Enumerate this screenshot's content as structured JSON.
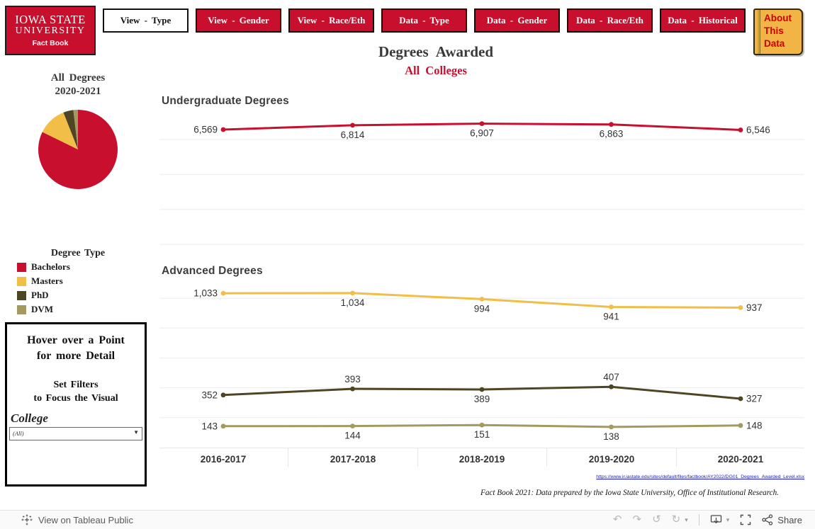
{
  "colors": {
    "cardinal": "#C8102E",
    "bright_red": "#CC0000",
    "gold": "#F1BE48",
    "olive": "#4E4524",
    "khaki": "#A29A5F",
    "link": "#1717D6",
    "book_bg": "#F2B445"
  },
  "header": {
    "logo": {
      "line1": "Iowa State",
      "line2": "University",
      "line3": "Fact Book"
    },
    "nav_buttons": [
      {
        "label": "View - Type",
        "active": true
      },
      {
        "label": "View - Gender",
        "active": false
      },
      {
        "label": "View - Race/Eth",
        "active": false
      },
      {
        "label": "Data - Type",
        "active": false
      },
      {
        "label": "Data - Gender",
        "active": false
      },
      {
        "label": "Data - Race/Eth",
        "active": false
      },
      {
        "label": "Data - Historical",
        "active": false
      }
    ],
    "about_lines": [
      "About",
      "This",
      "Data"
    ],
    "title": "Degrees Awarded",
    "subtitle": "All Colleges"
  },
  "sidebar": {
    "pie_title_line1": "All Degrees",
    "pie_title_line2": "2020-2021",
    "legend_title": "Degree Type",
    "box": {
      "hover1": "Hover over a Point",
      "hover2": "for more Detail",
      "set1": "Set Filters",
      "set2": "to Focus the Visual",
      "college_label": "College",
      "dropdown_value": "(All)"
    }
  },
  "chart_data": [
    {
      "id": "pie",
      "type": "pie",
      "title": "All Degrees 2020-2021",
      "labels": [
        "Bachelors",
        "Masters",
        "PhD",
        "DVM"
      ],
      "values": [
        6546,
        937,
        327,
        148
      ],
      "colors": [
        "#C8102E",
        "#F1BE48",
        "#4E4524",
        "#A29A5F"
      ],
      "legend_title": "Degree Type",
      "start_angle_deg": 0,
      "direction": "clockwise"
    },
    {
      "id": "undergrad",
      "type": "line",
      "title": "Undergraduate Degrees",
      "categories": [
        "2016-2017",
        "2017-2018",
        "2018-2019",
        "2019-2020",
        "2020-2021"
      ],
      "ylim": [
        0,
        7500
      ],
      "gridlines": [
        0,
        2000,
        4000,
        6000
      ],
      "grid": true,
      "series": [
        {
          "name": "Bachelors",
          "color": "#C8102E",
          "values": [
            6569,
            6814,
            6907,
            6863,
            6546
          ],
          "labels": [
            "6,569",
            "6,814",
            "6,907",
            "6,863",
            "6,546"
          ],
          "label_pos": [
            "left",
            "below",
            "below",
            "below",
            "right"
          ]
        }
      ]
    },
    {
      "id": "advanced",
      "type": "line",
      "title": "Advanced Degrees",
      "categories": [
        "2016-2017",
        "2017-2018",
        "2018-2019",
        "2019-2020",
        "2020-2021"
      ],
      "ylim": [
        0,
        1100
      ],
      "gridlines": [
        200,
        400,
        600,
        800,
        1000
      ],
      "grid": true,
      "series": [
        {
          "name": "Masters",
          "color": "#F1BE48",
          "values": [
            1033,
            1034,
            994,
            941,
            937
          ],
          "labels": [
            "1,033",
            "1,034",
            "994",
            "941",
            "937"
          ],
          "label_pos": [
            "left",
            "below",
            "below",
            "below",
            "right"
          ]
        },
        {
          "name": "PhD",
          "color": "#4E4524",
          "values": [
            352,
            393,
            389,
            407,
            327
          ],
          "labels": [
            "352",
            "393",
            "389",
            "407",
            "327"
          ],
          "label_pos": [
            "left",
            "above",
            "below",
            "above",
            "right"
          ]
        },
        {
          "name": "DVM",
          "color": "#A29A5F",
          "values": [
            143,
            144,
            151,
            138,
            148
          ],
          "labels": [
            "143",
            "144",
            "151",
            "138",
            "148"
          ],
          "label_pos": [
            "left",
            "below",
            "below",
            "below",
            "right"
          ]
        }
      ]
    }
  ],
  "footer": {
    "link": "https://www.ir.iastate.edu/sites/default/files/factbook/AY2022/DG01_Degrees_Awarded_Level.xlsx",
    "attribution": "Fact Book 2021: Data prepared by the Iowa State University, Office of Institutional Research."
  },
  "toolbar": {
    "view_label": "View on Tableau Public",
    "share_label": "Share",
    "icons": [
      {
        "name": "undo-icon",
        "glyph": "↶"
      },
      {
        "name": "redo-icon",
        "glyph": "↷"
      },
      {
        "name": "revert-icon",
        "glyph": "↺"
      },
      {
        "name": "refresh-icon",
        "glyph": "↻"
      },
      {
        "name": "caret-down-icon",
        "glyph": "▾"
      },
      {
        "name": "download-icon",
        "glyph": ""
      },
      {
        "name": "fullscreen-icon",
        "glyph": ""
      },
      {
        "name": "share-icon",
        "glyph": ""
      }
    ]
  }
}
